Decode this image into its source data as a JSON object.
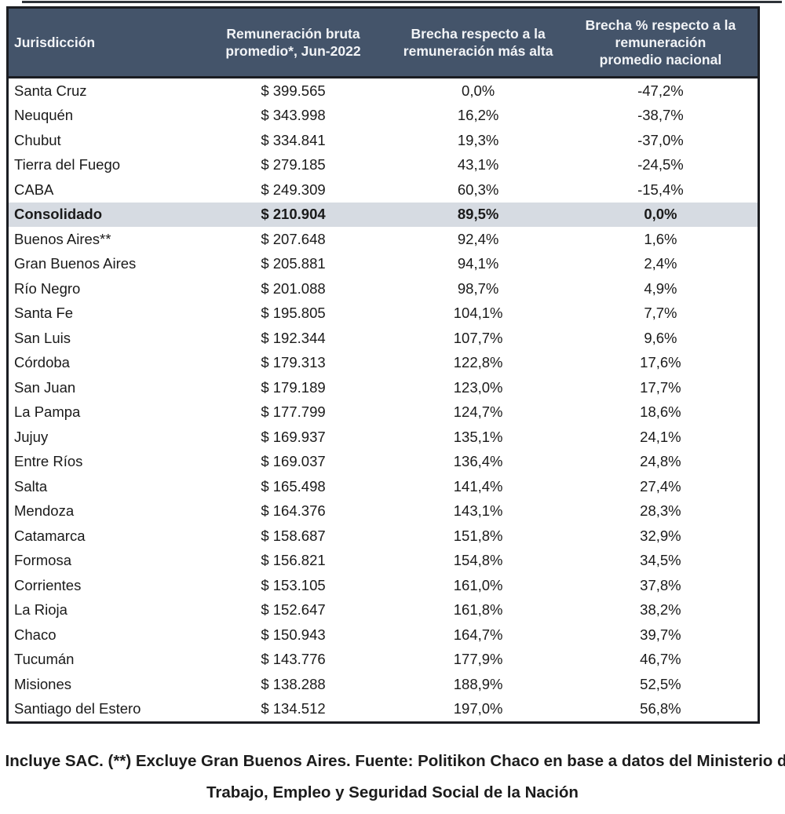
{
  "table": {
    "columns": [
      {
        "id": "jurisdiccion",
        "label": "Jurisdicción",
        "lines": [
          "Jurisdicción"
        ]
      },
      {
        "id": "remuneracion",
        "label": "Remuneración bruta promedio*, Jun-2022",
        "lines": [
          "Remuneración bruta",
          "promedio*, Jun-2022"
        ]
      },
      {
        "id": "brecha_mas_alta",
        "label": "Brecha respecto a la remuneración más alta",
        "lines": [
          "Brecha respecto a la",
          "remuneración más alta"
        ]
      },
      {
        "id": "brecha_promedio",
        "label": "Brecha % respecto a la remuneración promedio nacional",
        "lines": [
          "Brecha % respecto a la",
          "remuneración",
          "promedio nacional"
        ]
      }
    ],
    "rows": [
      {
        "jurisdiccion": "Santa Cruz",
        "remuneracion": "$ 399.565",
        "brecha_mas_alta": "0,0%",
        "brecha_promedio": "-47,2%",
        "highlight": false
      },
      {
        "jurisdiccion": "Neuquén",
        "remuneracion": "$ 343.998",
        "brecha_mas_alta": "16,2%",
        "brecha_promedio": "-38,7%",
        "highlight": false
      },
      {
        "jurisdiccion": "Chubut",
        "remuneracion": "$ 334.841",
        "brecha_mas_alta": "19,3%",
        "brecha_promedio": "-37,0%",
        "highlight": false
      },
      {
        "jurisdiccion": "Tierra del Fuego",
        "remuneracion": "$ 279.185",
        "brecha_mas_alta": "43,1%",
        "brecha_promedio": "-24,5%",
        "highlight": false
      },
      {
        "jurisdiccion": "CABA",
        "remuneracion": "$ 249.309",
        "brecha_mas_alta": "60,3%",
        "brecha_promedio": "-15,4%",
        "highlight": false
      },
      {
        "jurisdiccion": "Consolidado",
        "remuneracion": "$ 210.904",
        "brecha_mas_alta": "89,5%",
        "brecha_promedio": "0,0%",
        "highlight": true
      },
      {
        "jurisdiccion": "Buenos Aires**",
        "remuneracion": "$ 207.648",
        "brecha_mas_alta": "92,4%",
        "brecha_promedio": "1,6%",
        "highlight": false
      },
      {
        "jurisdiccion": "Gran Buenos Aires",
        "remuneracion": "$ 205.881",
        "brecha_mas_alta": "94,1%",
        "brecha_promedio": "2,4%",
        "highlight": false
      },
      {
        "jurisdiccion": "Río Negro",
        "remuneracion": "$ 201.088",
        "brecha_mas_alta": "98,7%",
        "brecha_promedio": "4,9%",
        "highlight": false
      },
      {
        "jurisdiccion": "Santa Fe",
        "remuneracion": "$ 195.805",
        "brecha_mas_alta": "104,1%",
        "brecha_promedio": "7,7%",
        "highlight": false
      },
      {
        "jurisdiccion": "San Luis",
        "remuneracion": "$ 192.344",
        "brecha_mas_alta": "107,7%",
        "brecha_promedio": "9,6%",
        "highlight": false
      },
      {
        "jurisdiccion": "Córdoba",
        "remuneracion": "$ 179.313",
        "brecha_mas_alta": "122,8%",
        "brecha_promedio": "17,6%",
        "highlight": false
      },
      {
        "jurisdiccion": "San Juan",
        "remuneracion": "$ 179.189",
        "brecha_mas_alta": "123,0%",
        "brecha_promedio": "17,7%",
        "highlight": false
      },
      {
        "jurisdiccion": "La Pampa",
        "remuneracion": "$ 177.799",
        "brecha_mas_alta": "124,7%",
        "brecha_promedio": "18,6%",
        "highlight": false
      },
      {
        "jurisdiccion": "Jujuy",
        "remuneracion": "$ 169.937",
        "brecha_mas_alta": "135,1%",
        "brecha_promedio": "24,1%",
        "highlight": false
      },
      {
        "jurisdiccion": "Entre Ríos",
        "remuneracion": "$ 169.037",
        "brecha_mas_alta": "136,4%",
        "brecha_promedio": "24,8%",
        "highlight": false
      },
      {
        "jurisdiccion": "Salta",
        "remuneracion": "$ 165.498",
        "brecha_mas_alta": "141,4%",
        "brecha_promedio": "27,4%",
        "highlight": false
      },
      {
        "jurisdiccion": "Mendoza",
        "remuneracion": "$ 164.376",
        "brecha_mas_alta": "143,1%",
        "brecha_promedio": "28,3%",
        "highlight": false
      },
      {
        "jurisdiccion": "Catamarca",
        "remuneracion": "$ 158.687",
        "brecha_mas_alta": "151,8%",
        "brecha_promedio": "32,9%",
        "highlight": false
      },
      {
        "jurisdiccion": "Formosa",
        "remuneracion": "$ 156.821",
        "brecha_mas_alta": "154,8%",
        "brecha_promedio": "34,5%",
        "highlight": false
      },
      {
        "jurisdiccion": "Corrientes",
        "remuneracion": "$ 153.105",
        "brecha_mas_alta": "161,0%",
        "brecha_promedio": "37,8%",
        "highlight": false
      },
      {
        "jurisdiccion": "La Rioja",
        "remuneracion": "$ 152.647",
        "brecha_mas_alta": "161,8%",
        "brecha_promedio": "38,2%",
        "highlight": false
      },
      {
        "jurisdiccion": "Chaco",
        "remuneracion": "$ 150.943",
        "brecha_mas_alta": "164,7%",
        "brecha_promedio": "39,7%",
        "highlight": false
      },
      {
        "jurisdiccion": "Tucumán",
        "remuneracion": "$ 143.776",
        "brecha_mas_alta": "177,9%",
        "brecha_promedio": "46,7%",
        "highlight": false
      },
      {
        "jurisdiccion": "Misiones",
        "remuneracion": "$ 138.288",
        "brecha_mas_alta": "188,9%",
        "brecha_promedio": "52,5%",
        "highlight": false
      },
      {
        "jurisdiccion": "Santiago del Estero",
        "remuneracion": "$ 134.512",
        "brecha_mas_alta": "197,0%",
        "brecha_promedio": "56,8%",
        "highlight": false
      }
    ]
  },
  "footnote": {
    "line1": "*) Incluye SAC. (**) Excluye Gran Buenos Aires. Fuente: Politikon Chaco en base a datos del Ministerio de",
    "line2": "Trabajo, Empleo y Seguridad Social de la Nación"
  },
  "colors": {
    "header_bg": "#44546a",
    "header_text": "#f2f4f7",
    "highlight_row_bg": "#d6dbe2",
    "border": "#1b1d22",
    "body_text": "#1a1a1a"
  },
  "chart_data": {
    "type": "table",
    "title": "",
    "columns": [
      "Jurisdicción",
      "Remuneración bruta promedio*, Jun-2022",
      "Brecha respecto a la remuneración más alta",
      "Brecha % respecto a la remuneración promedio nacional"
    ],
    "highlighted_row": "Consolidado",
    "rows": [
      [
        "Santa Cruz",
        399565,
        0.0,
        -47.2
      ],
      [
        "Neuquén",
        343998,
        16.2,
        -38.7
      ],
      [
        "Chubut",
        334841,
        19.3,
        -37.0
      ],
      [
        "Tierra del Fuego",
        279185,
        43.1,
        -24.5
      ],
      [
        "CABA",
        249309,
        60.3,
        -15.4
      ],
      [
        "Consolidado",
        210904,
        89.5,
        0.0
      ],
      [
        "Buenos Aires**",
        207648,
        92.4,
        1.6
      ],
      [
        "Gran Buenos Aires",
        205881,
        94.1,
        2.4
      ],
      [
        "Río Negro",
        201088,
        98.7,
        4.9
      ],
      [
        "Santa Fe",
        195805,
        104.1,
        7.7
      ],
      [
        "San Luis",
        192344,
        107.7,
        9.6
      ],
      [
        "Córdoba",
        179313,
        122.8,
        17.6
      ],
      [
        "San Juan",
        179189,
        123.0,
        17.7
      ],
      [
        "La Pampa",
        177799,
        124.7,
        18.6
      ],
      [
        "Jujuy",
        169937,
        135.1,
        24.1
      ],
      [
        "Entre Ríos",
        169037,
        136.4,
        24.8
      ],
      [
        "Salta",
        165498,
        141.4,
        27.4
      ],
      [
        "Mendoza",
        164376,
        143.1,
        28.3
      ],
      [
        "Catamarca",
        158687,
        151.8,
        32.9
      ],
      [
        "Formosa",
        156821,
        154.8,
        34.5
      ],
      [
        "Corrientes",
        153105,
        161.0,
        37.8
      ],
      [
        "La Rioja",
        152647,
        161.8,
        38.2
      ],
      [
        "Chaco",
        150943,
        164.7,
        39.7
      ],
      [
        "Tucumán",
        143776,
        177.9,
        46.7
      ],
      [
        "Misiones",
        138288,
        188.9,
        52.5
      ],
      [
        "Santiago del Estero",
        134512,
        197.0,
        56.8
      ]
    ],
    "source_note": "(*) Incluye SAC. (**) Excluye Gran Buenos Aires. Fuente: Politikon Chaco en base a datos del Ministerio de Trabajo, Empleo y Seguridad Social de la Nación",
    "value_format": "currency ARS with dot thousands separator; percentages with comma decimal"
  }
}
